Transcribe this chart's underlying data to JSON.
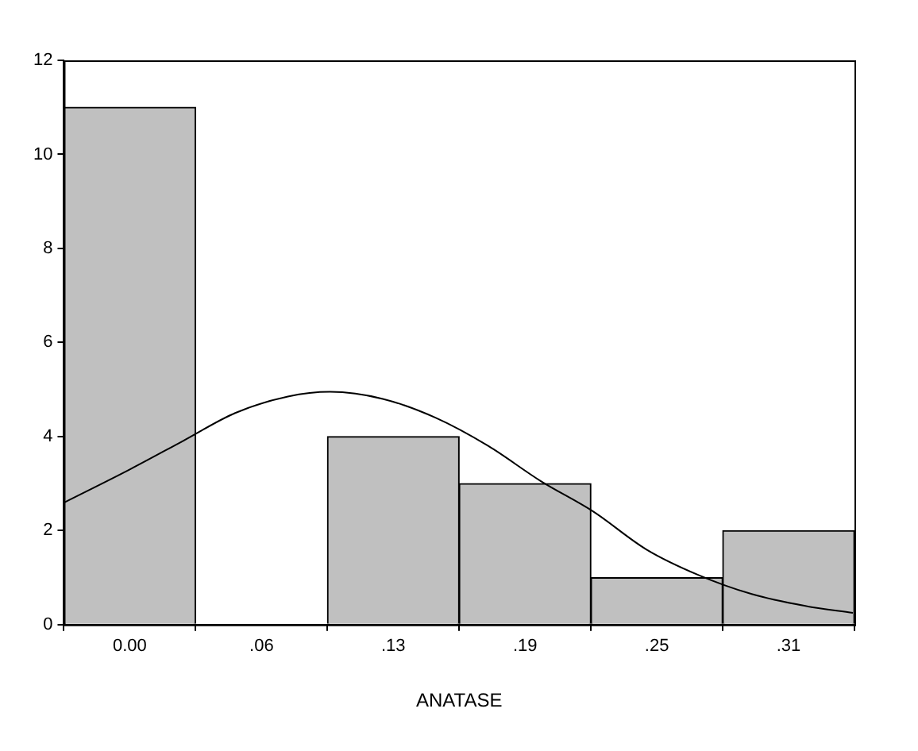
{
  "chart_data": {
    "type": "histogram",
    "xlabel": "ANATASE",
    "bins": [
      -0.03125,
      0.03125,
      0.09375,
      0.15625,
      0.21875,
      0.28125,
      0.34375
    ],
    "values": [
      11,
      0,
      4,
      3,
      1,
      2
    ],
    "color": "#c0c0c0",
    "xlim": [
      -0.03125,
      0.34375
    ],
    "xticks": [
      {
        "value": 0,
        "label": "0.00"
      },
      {
        "value": 0.0625,
        "label": ".06"
      },
      {
        "value": 0.125,
        "label": ".13"
      },
      {
        "value": 0.1875,
        "label": ".19"
      },
      {
        "value": 0.25,
        "label": ".25"
      },
      {
        "value": 0.3125,
        "label": ".31"
      }
    ],
    "ylim": [
      0,
      12
    ],
    "yticks": [
      0,
      2,
      4,
      6,
      8,
      10,
      12
    ],
    "grid": false,
    "legend": false,
    "series": [
      {
        "type": "line",
        "color": "#000000",
        "x": [
          -0.031,
          0,
          0.025,
          0.05,
          0.075,
          0.095,
          0.12,
          0.145,
          0.17,
          0.195,
          0.22,
          0.245,
          0.27,
          0.295,
          0.32,
          0.343
        ],
        "values": [
          2.6,
          3.3,
          3.9,
          4.5,
          4.85,
          4.95,
          4.8,
          4.4,
          3.8,
          3.05,
          2.4,
          1.6,
          1.05,
          0.65,
          0.4,
          0.25
        ]
      }
    ]
  }
}
